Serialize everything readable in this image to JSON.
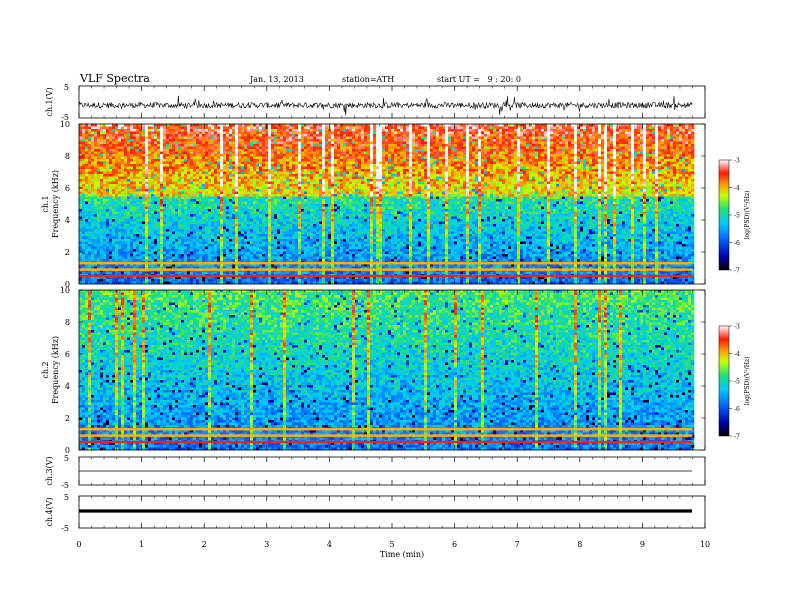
{
  "header": {
    "title": "VLF Spectra",
    "date": "Jan. 13, 2013",
    "station": "station=ATH",
    "start": "start UT =   9 : 20: 0"
  },
  "chart_data": [
    {
      "type": "line",
      "panel": "ch1-waveform",
      "ylabel": "ch.1(V)",
      "yticks": [
        "5",
        "-5"
      ],
      "ylim": [
        -5,
        5
      ],
      "xlim": [
        0,
        10
      ],
      "data_end": 9.8,
      "series": [
        {
          "values": "noisy waveform centered near -1 V, amplitude ~1.5 V"
        }
      ]
    },
    {
      "type": "heatmap",
      "panel": "ch1-spectrogram",
      "ylabel_line1": "ch.1",
      "ylabel_line2": "Frequency (kHz)",
      "yticks": [
        "0",
        "2",
        "4",
        "6",
        "8",
        "10"
      ],
      "ylim": [
        0,
        10
      ],
      "xlim": [
        0,
        10
      ],
      "data_end": 9.8,
      "colorbar": {
        "label": "log(PSD)(V²/Hz)",
        "ticks": [
          "-3",
          "-4",
          "-5",
          "-6",
          "-7"
        ],
        "range": [
          -7,
          -3
        ]
      }
    },
    {
      "type": "heatmap",
      "panel": "ch2-spectrogram",
      "ylabel_line1": "ch.2",
      "ylabel_line2": "Frequency (kHz)",
      "yticks": [
        "0",
        "2",
        "4",
        "6",
        "8",
        "10"
      ],
      "ylim": [
        0,
        10
      ],
      "xlim": [
        0,
        10
      ],
      "data_end": 9.8,
      "colorbar": {
        "label": "log(PSD)(V²/Hz)",
        "ticks": [
          "-3",
          "-4",
          "-5",
          "-6",
          "-7"
        ],
        "range": [
          -7,
          -3
        ]
      }
    },
    {
      "type": "line",
      "panel": "ch3-waveform",
      "ylabel": "ch.3(V)",
      "yticks": [
        "5",
        "-5"
      ],
      "ylim": [
        -5,
        5
      ],
      "series": [
        {
          "values": "flat at ~0 V"
        }
      ]
    },
    {
      "type": "line",
      "panel": "ch4-waveform",
      "ylabel": "ch.4(V)",
      "yticks": [
        "5",
        "-5"
      ],
      "ylim": [
        -5,
        5
      ],
      "series": [
        {
          "values": "thick flat line near 0 V"
        }
      ]
    }
  ],
  "xaxis": {
    "label": "Time (min)",
    "ticks": [
      "0",
      "1",
      "2",
      "3",
      "4",
      "5",
      "6",
      "7",
      "8",
      "9",
      "10"
    ],
    "range": [
      0,
      10
    ]
  }
}
